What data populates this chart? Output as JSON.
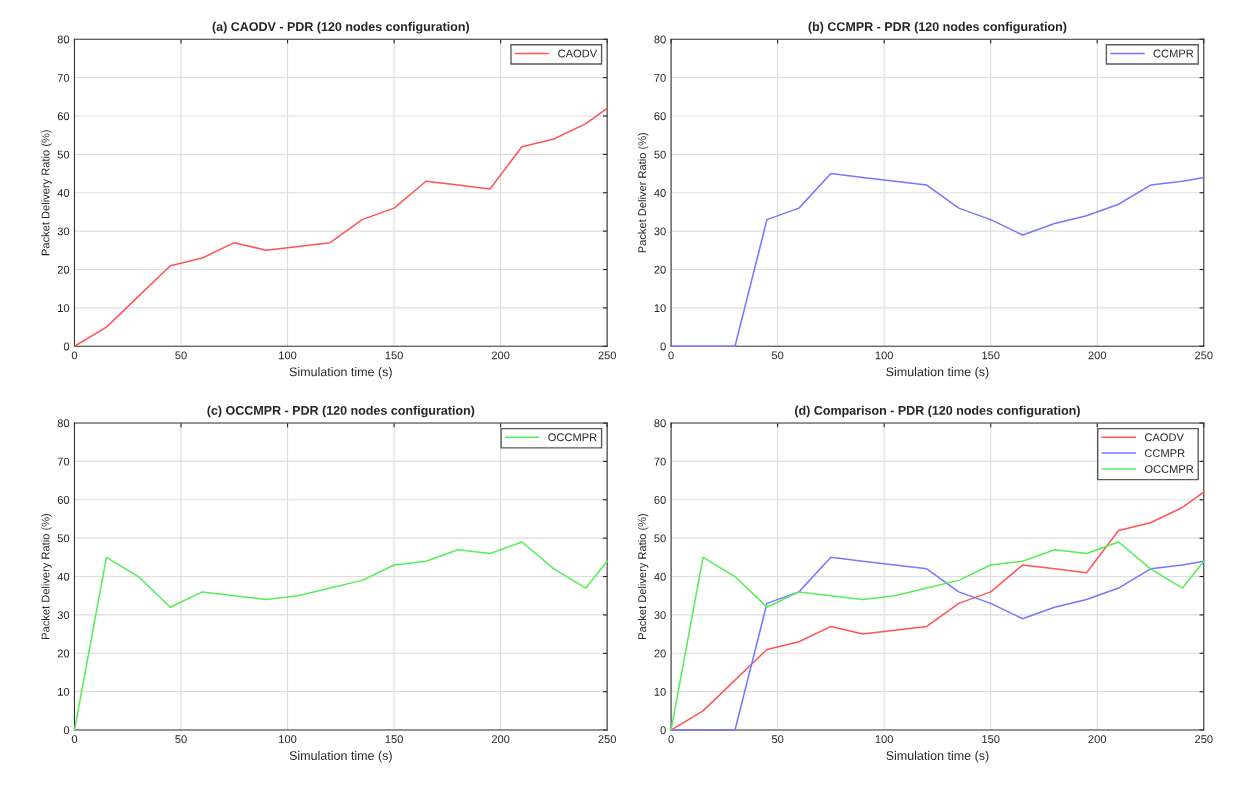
{
  "chart_data": [
    {
      "type": "line",
      "title": "(a) CAODV - PDR (120 nodes configuration)",
      "xlabel": "Simulation time (s)",
      "ylabel": "Packet Delivery Ratio (%)",
      "xlim": [
        0,
        250
      ],
      "ylim": [
        0,
        80
      ],
      "xticks": [
        0,
        50,
        100,
        150,
        200,
        250
      ],
      "yticks": [
        0,
        10,
        20,
        30,
        40,
        50,
        60,
        70,
        80
      ],
      "grid": true,
      "legend": "top right",
      "x": [
        0,
        15,
        30,
        45,
        60,
        75,
        90,
        105,
        120,
        135,
        150,
        165,
        180,
        195,
        210,
        225,
        240,
        250
      ],
      "series": [
        {
          "name": "CAODV",
          "color": "#ff5555",
          "values": [
            0,
            5,
            13,
            21,
            23,
            27,
            25,
            26,
            27,
            33,
            36,
            43,
            42,
            41,
            52,
            54,
            58,
            62
          ]
        }
      ]
    },
    {
      "type": "line",
      "title": "(b) CCMPR - PDR (120 nodes configuration)",
      "xlabel": "Simulation time (s)",
      "ylabel": "Packet Deliver Ratio (%)",
      "xlim": [
        0,
        250
      ],
      "ylim": [
        0,
        80
      ],
      "xticks": [
        0,
        50,
        100,
        150,
        200,
        250
      ],
      "yticks": [
        0,
        10,
        20,
        30,
        40,
        50,
        60,
        70,
        80
      ],
      "grid": true,
      "legend": "top right",
      "x": [
        0,
        15,
        30,
        45,
        60,
        75,
        90,
        105,
        120,
        135,
        150,
        165,
        180,
        195,
        210,
        225,
        240,
        250
      ],
      "series": [
        {
          "name": "CCMPR",
          "color": "#7777ff",
          "values": [
            0,
            0,
            0,
            33,
            36,
            45,
            44,
            43,
            42,
            36,
            33,
            29,
            32,
            34,
            37,
            42,
            43,
            44
          ]
        }
      ]
    },
    {
      "type": "line",
      "title": "(c) OCCMPR - PDR (120 nodes configuration)",
      "xlabel": "Simulation time (s)",
      "ylabel": "Packet Delivery Ratio (%)",
      "xlim": [
        0,
        250
      ],
      "ylim": [
        0,
        80
      ],
      "xticks": [
        0,
        50,
        100,
        150,
        200,
        250
      ],
      "yticks": [
        0,
        10,
        20,
        30,
        40,
        50,
        60,
        70,
        80
      ],
      "grid": true,
      "legend": "top right",
      "x": [
        0,
        15,
        30,
        45,
        60,
        75,
        90,
        105,
        120,
        135,
        150,
        165,
        180,
        195,
        210,
        225,
        240,
        250
      ],
      "series": [
        {
          "name": "OCCMPR",
          "color": "#55ee55",
          "values": [
            0,
            45,
            40,
            32,
            36,
            35,
            34,
            35,
            37,
            39,
            43,
            44,
            47,
            46,
            49,
            42,
            37,
            44
          ]
        }
      ]
    },
    {
      "type": "line",
      "title": "(d) Comparison - PDR (120 nodes configuration)",
      "xlabel": "Simulation time (s)",
      "ylabel": "Packet Delivery Ratio (%)",
      "xlim": [
        0,
        250
      ],
      "ylim": [
        0,
        80
      ],
      "xticks": [
        0,
        50,
        100,
        150,
        200,
        250
      ],
      "yticks": [
        0,
        10,
        20,
        30,
        40,
        50,
        60,
        70,
        80
      ],
      "grid": true,
      "legend": "top right",
      "x": [
        0,
        15,
        30,
        45,
        60,
        75,
        90,
        105,
        120,
        135,
        150,
        165,
        180,
        195,
        210,
        225,
        240,
        250
      ],
      "series": [
        {
          "name": "CAODV",
          "color": "#ff5555",
          "values": [
            0,
            5,
            13,
            21,
            23,
            27,
            25,
            26,
            27,
            33,
            36,
            43,
            42,
            41,
            52,
            54,
            58,
            62
          ]
        },
        {
          "name": "CCMPR",
          "color": "#7777ff",
          "values": [
            0,
            0,
            0,
            33,
            36,
            45,
            44,
            43,
            42,
            36,
            33,
            29,
            32,
            34,
            37,
            42,
            43,
            44
          ]
        },
        {
          "name": "OCCMPR",
          "color": "#55ee55",
          "values": [
            0,
            45,
            40,
            32,
            36,
            35,
            34,
            35,
            37,
            39,
            43,
            44,
            47,
            46,
            49,
            42,
            37,
            44
          ]
        }
      ]
    }
  ]
}
